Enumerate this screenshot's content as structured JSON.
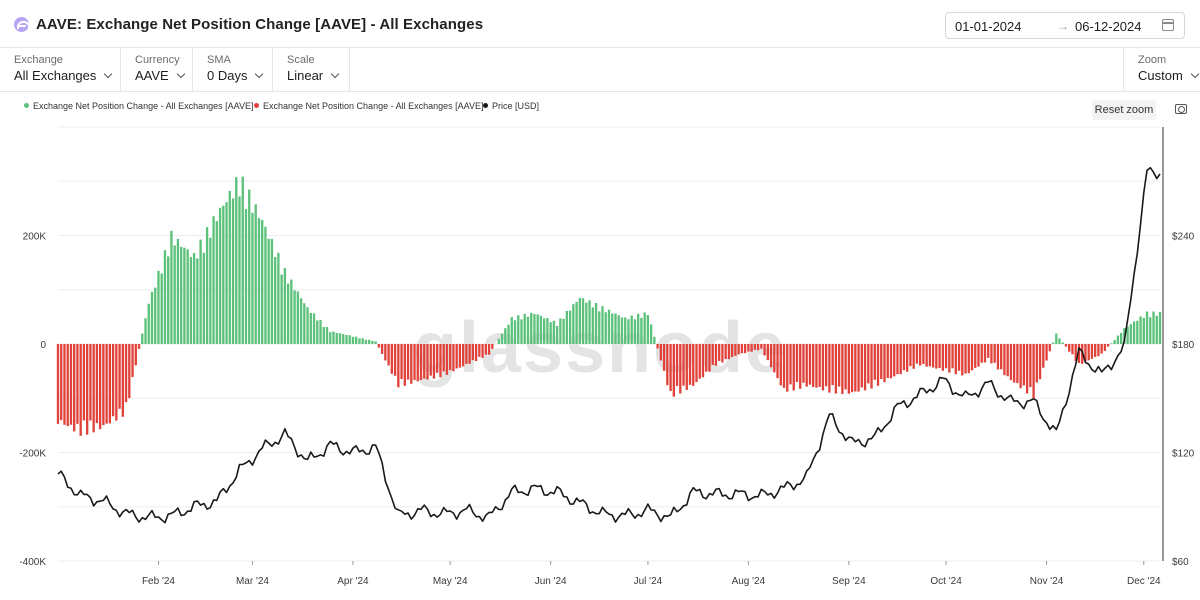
{
  "header": {
    "title": "AAVE: Exchange Net Position Change [AAVE] - All Exchanges",
    "date_from": "01-01-2024",
    "date_arrow": "→",
    "date_to": "06-12-2024"
  },
  "controls": {
    "exchange": {
      "label": "Exchange",
      "value": "All Exchanges"
    },
    "currency": {
      "label": "Currency",
      "value": "AAVE"
    },
    "sma": {
      "label": "SMA",
      "value": "0 Days"
    },
    "scale": {
      "label": "Scale",
      "value": "Linear"
    },
    "zoom": {
      "label": "Zoom",
      "value": "Custom"
    }
  },
  "toolbar": {
    "reset_zoom": "Reset zoom"
  },
  "legend": {
    "positive": "Exchange Net Position Change - All Exchanges [AAVE]",
    "negative": "Exchange Net Position Change - All Exchanges [AAVE]",
    "price": "Price [USD]"
  },
  "colors": {
    "positive": "#5cc17a",
    "negative": "#e0413a",
    "price": "#1a1a1a"
  },
  "watermark": "glassnode",
  "chart_data": {
    "type": "bar",
    "overlay": "line",
    "left_axis": {
      "ticks": [
        200000,
        0,
        -200000,
        -400000
      ],
      "tick_labels": [
        "200K",
        "0",
        "-200K",
        "-400K"
      ],
      "range": [
        -400000,
        400000
      ]
    },
    "right_axis": {
      "ticks": [
        240,
        180,
        120,
        60
      ],
      "tick_labels": [
        "$240",
        "$180",
        "$120",
        "$60"
      ],
      "range": [
        60,
        300
      ]
    },
    "x_tick_labels": [
      "Feb '24",
      "Mar '24",
      "Apr '24",
      "May '24",
      "Jun '24",
      "Jul '24",
      "Aug '24",
      "Sep '24",
      "Oct '24",
      "Nov '24",
      "Dec '24"
    ],
    "x_range": [
      "2024-01-01",
      "2024-12-06"
    ],
    "grid": true,
    "net_position_change_weekly_approx": [
      [
        "2024-01-01",
        -150000
      ],
      [
        "2024-01-08",
        -170000
      ],
      [
        "2024-01-15",
        -160000
      ],
      [
        "2024-01-22",
        -130000
      ],
      [
        "2024-01-29",
        80000
      ],
      [
        "2024-02-05",
        210000
      ],
      [
        "2024-02-12",
        170000
      ],
      [
        "2024-02-19",
        250000
      ],
      [
        "2024-02-26",
        320000
      ],
      [
        "2024-03-04",
        240000
      ],
      [
        "2024-03-11",
        140000
      ],
      [
        "2024-03-18",
        70000
      ],
      [
        "2024-03-25",
        25000
      ],
      [
        "2024-04-01",
        15000
      ],
      [
        "2024-04-08",
        5000
      ],
      [
        "2024-04-15",
        -80000
      ],
      [
        "2024-04-22",
        -70000
      ],
      [
        "2024-04-29",
        -60000
      ],
      [
        "2024-05-06",
        -40000
      ],
      [
        "2024-05-13",
        -20000
      ],
      [
        "2024-05-20",
        50000
      ],
      [
        "2024-05-27",
        60000
      ],
      [
        "2024-06-03",
        40000
      ],
      [
        "2024-06-10",
        90000
      ],
      [
        "2024-06-17",
        70000
      ],
      [
        "2024-06-24",
        50000
      ],
      [
        "2024-07-01",
        60000
      ],
      [
        "2024-07-08",
        -100000
      ],
      [
        "2024-07-15",
        -80000
      ],
      [
        "2024-07-22",
        -40000
      ],
      [
        "2024-07-29",
        -20000
      ],
      [
        "2024-08-05",
        -10000
      ],
      [
        "2024-08-12",
        -90000
      ],
      [
        "2024-08-19",
        -80000
      ],
      [
        "2024-08-26",
        -90000
      ],
      [
        "2024-09-02",
        -95000
      ],
      [
        "2024-09-09",
        -80000
      ],
      [
        "2024-09-16",
        -60000
      ],
      [
        "2024-09-23",
        -40000
      ],
      [
        "2024-09-30",
        -50000
      ],
      [
        "2024-10-07",
        -60000
      ],
      [
        "2024-10-14",
        -30000
      ],
      [
        "2024-10-21",
        -70000
      ],
      [
        "2024-10-28",
        -100000
      ],
      [
        "2024-11-04",
        20000
      ],
      [
        "2024-11-11",
        -40000
      ],
      [
        "2024-11-18",
        -20000
      ],
      [
        "2024-11-25",
        30000
      ],
      [
        "2024-12-02",
        60000
      ]
    ],
    "price_usd_weekly_approx": [
      [
        "2024-01-01",
        108
      ],
      [
        "2024-01-08",
        96
      ],
      [
        "2024-01-15",
        93
      ],
      [
        "2024-01-22",
        86
      ],
      [
        "2024-01-29",
        84
      ],
      [
        "2024-02-05",
        85
      ],
      [
        "2024-02-12",
        90
      ],
      [
        "2024-02-19",
        93
      ],
      [
        "2024-02-26",
        110
      ],
      [
        "2024-03-04",
        122
      ],
      [
        "2024-03-11",
        130
      ],
      [
        "2024-03-18",
        115
      ],
      [
        "2024-03-25",
        124
      ],
      [
        "2024-04-01",
        120
      ],
      [
        "2024-04-08",
        123
      ],
      [
        "2024-04-15",
        85
      ],
      [
        "2024-04-22",
        88
      ],
      [
        "2024-04-29",
        86
      ],
      [
        "2024-05-06",
        88
      ],
      [
        "2024-05-13",
        84
      ],
      [
        "2024-05-20",
        98
      ],
      [
        "2024-05-27",
        100
      ],
      [
        "2024-06-03",
        98
      ],
      [
        "2024-06-10",
        92
      ],
      [
        "2024-06-17",
        86
      ],
      [
        "2024-06-24",
        85
      ],
      [
        "2024-07-01",
        88
      ],
      [
        "2024-07-08",
        84
      ],
      [
        "2024-07-15",
        98
      ],
      [
        "2024-07-22",
        97
      ],
      [
        "2024-07-29",
        97
      ],
      [
        "2024-08-05",
        96
      ],
      [
        "2024-08-12",
        100
      ],
      [
        "2024-08-19",
        106
      ],
      [
        "2024-08-26",
        140
      ],
      [
        "2024-09-02",
        125
      ],
      [
        "2024-09-09",
        128
      ],
      [
        "2024-09-16",
        145
      ],
      [
        "2024-09-23",
        152
      ],
      [
        "2024-09-30",
        160
      ],
      [
        "2024-10-07",
        150
      ],
      [
        "2024-10-14",
        158
      ],
      [
        "2024-10-21",
        148
      ],
      [
        "2024-10-28",
        148
      ],
      [
        "2024-11-04",
        130
      ],
      [
        "2024-11-11",
        175
      ],
      [
        "2024-11-18",
        163
      ],
      [
        "2024-11-25",
        178
      ],
      [
        "2024-12-02",
        275
      ]
    ]
  }
}
